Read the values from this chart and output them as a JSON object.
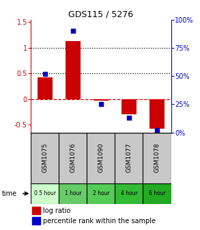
{
  "title": "GDS115 / 5276",
  "samples": [
    "GSM1075",
    "GSM1076",
    "GSM1090",
    "GSM1077",
    "GSM1078"
  ],
  "time_labels": [
    "0.5 hour",
    "1 hour",
    "2 hour",
    "4 hour",
    "6 hour"
  ],
  "time_colors": [
    "#ccffcc",
    "#66cc66",
    "#55cc55",
    "#33bb33",
    "#22aa22"
  ],
  "log_ratio": [
    0.43,
    1.13,
    -0.03,
    -0.3,
    -0.58
  ],
  "percentile": [
    0.52,
    0.9,
    0.25,
    0.13,
    0.02
  ],
  "bar_color": "#cc0000",
  "dot_color": "#0000cc",
  "ylim_left": [
    -0.65,
    1.55
  ],
  "ylim_right": [
    0.0,
    1.0
  ],
  "yticks_left": [
    -0.5,
    0.0,
    0.5,
    1.0,
    1.5
  ],
  "ytick_labels_left": [
    "-0.5",
    "0",
    "0.5",
    "1",
    "1.5"
  ],
  "yticks_right": [
    0.0,
    0.25,
    0.5,
    0.75,
    1.0
  ],
  "ytick_labels_right": [
    "0%",
    "25%",
    "50%",
    "75%",
    "100%"
  ],
  "hlines": [
    0.5,
    1.0
  ],
  "zero_line": 0.0,
  "sample_bg": "#c8c8c8",
  "legend_bar_label": "log ratio",
  "legend_dot_label": "percentile rank within the sample",
  "bg_color": "#ffffff"
}
